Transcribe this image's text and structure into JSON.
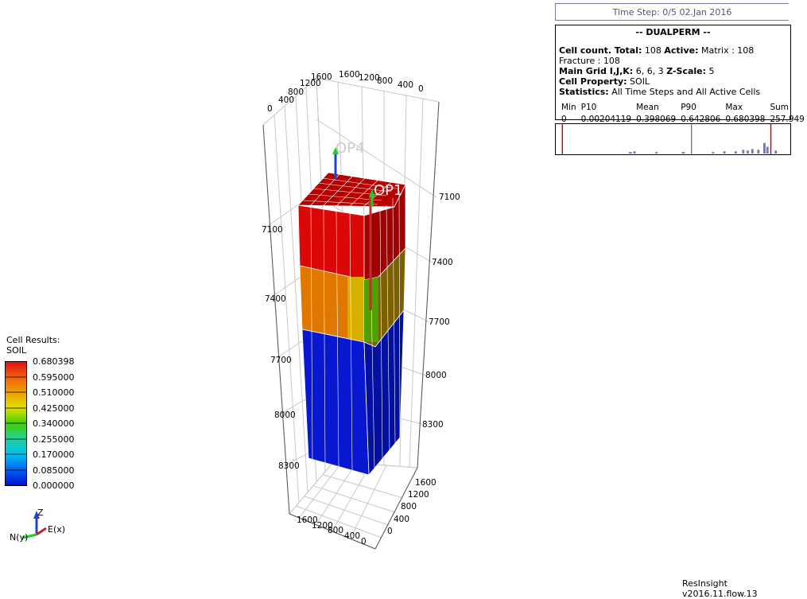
{
  "time_step": "Time Step: 0/5 02.Jan 2016",
  "info": {
    "title": "-- DUALPERM --",
    "cell_count_label": "Cell count. Total:",
    "cell_count_total": "108",
    "active_label": "Active:",
    "active_value": "Matrix : 108 Fracture : 108",
    "main_grid_label": "Main Grid I,J,K:",
    "main_grid_value": "6, 6, 3",
    "zscale_label": "Z-Scale:",
    "zscale_value": "5",
    "cell_property_label": "Cell Property:",
    "cell_property_value": "SOIL",
    "statistics_label": "Statistics:",
    "statistics_value": "All Time Steps and All Active Cells",
    "stats_headers": [
      "Min",
      "P10",
      "Mean",
      "P90",
      "Max",
      "Sum"
    ],
    "stats_values": [
      "0",
      "0.00204119",
      "0.398069",
      "0.642806",
      "0.680398",
      "257.949"
    ]
  },
  "legend": {
    "title_line1": "Cell Results:",
    "title_line2": "SOIL",
    "labels": [
      "0.680398",
      "0.595000",
      "0.510000",
      "0.425000",
      "0.340000",
      "0.255000",
      "0.170000",
      "0.085000",
      "0.000000"
    ],
    "colors": [
      "#e01010",
      "#f06010",
      "#f0a000",
      "#e0e000",
      "#40d000",
      "#20d0a0",
      "#00c0f0",
      "#0060f0",
      "#0010d0"
    ]
  },
  "axes": {
    "top_left_ticks": [
      "0",
      "400",
      "800",
      "1200",
      "1600"
    ],
    "top_right_ticks": [
      "1600",
      "1200",
      "800",
      "400",
      "0"
    ],
    "left_depth_ticks": [
      "7100",
      "7400",
      "7700",
      "8000",
      "8300"
    ],
    "right_depth_ticks": [
      "7100",
      "7400",
      "7700",
      "8000",
      "8300"
    ],
    "bottom_front_ticks": [
      "1600",
      "1200",
      "800",
      "400",
      "0"
    ],
    "bottom_right_ticks": [
      "1600",
      "1200",
      "800",
      "400",
      "0"
    ]
  },
  "wells": [
    "OP4",
    "OP1"
  ],
  "axis_triad": {
    "z": "Z",
    "e": "E(x)",
    "n": "N(y)"
  },
  "version": "ResInsight v2016.11.flow.13",
  "colors": {
    "top_layer": "#d40000",
    "mid_layer": "#d86a00",
    "bottom_layer": "#0a20c8",
    "well_green": "#22cc22"
  }
}
